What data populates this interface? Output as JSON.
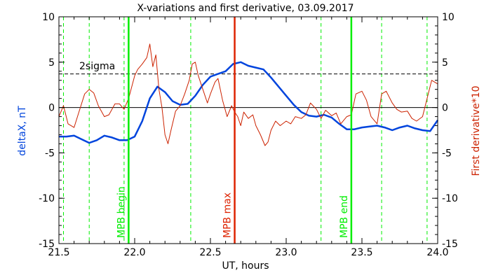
{
  "chart_data": {
    "type": "line",
    "title": "X-variations and first derivative, 03.09.2017",
    "xlabel": "UT, hours",
    "ylabel_left": "deltaX, nT",
    "ylabel_right": "First derivative*10",
    "xlim": [
      21.5,
      24.0
    ],
    "ylim": [
      -15,
      10
    ],
    "x_ticks": [
      "21.5",
      "22.0",
      "22.5",
      "23.0",
      "23.5",
      "24.0"
    ],
    "y_ticks_left": [
      "-15",
      "-10",
      "-5",
      "0",
      "5",
      "10"
    ],
    "y_ticks_right": [
      "-15",
      "-10",
      "-5",
      "0",
      "5",
      "10"
    ],
    "colors": {
      "deltaX": "#0044dd",
      "derivative": "#cc2200",
      "mpb": "#00ee00",
      "mpb_max": "#dd2200",
      "axis": "#000000"
    },
    "sigma_label": "2sigma",
    "sigma_level": 3.7,
    "zero_line": 0,
    "dashed_markers_x": [
      21.53,
      21.7,
      21.93,
      22.37,
      23.23,
      23.63,
      23.93
    ],
    "vertical_lines": [
      {
        "x": 21.96,
        "label": "MPB begin",
        "color": "#00ee00"
      },
      {
        "x": 22.66,
        "label": "MPB max",
        "color": "#dd2200"
      },
      {
        "x": 23.43,
        "label": "MPB end",
        "color": "#00ee00"
      }
    ],
    "series": [
      {
        "key": "deltaX",
        "name": "deltaX, nT",
        "x": [
          21.5,
          21.55,
          21.6,
          21.65,
          21.7,
          21.75,
          21.8,
          21.85,
          21.9,
          21.95,
          22.0,
          22.05,
          22.1,
          22.15,
          22.2,
          22.25,
          22.3,
          22.35,
          22.4,
          22.45,
          22.5,
          22.55,
          22.6,
          22.65,
          22.7,
          22.75,
          22.8,
          22.85,
          22.9,
          22.95,
          23.0,
          23.05,
          23.1,
          23.15,
          23.2,
          23.25,
          23.3,
          23.35,
          23.4,
          23.45,
          23.5,
          23.55,
          23.6,
          23.65,
          23.7,
          23.75,
          23.8,
          23.85,
          23.9,
          23.95,
          24.0
        ],
        "y": [
          -3.2,
          -3.2,
          -3.1,
          -3.5,
          -3.9,
          -3.6,
          -3.1,
          -3.3,
          -3.6,
          -3.6,
          -3.2,
          -1.5,
          1.0,
          2.3,
          1.7,
          0.7,
          0.3,
          0.4,
          1.3,
          2.5,
          3.4,
          3.7,
          4.0,
          4.8,
          5.0,
          4.6,
          4.4,
          4.2,
          3.3,
          2.3,
          1.3,
          0.3,
          -0.5,
          -0.9,
          -1.0,
          -0.8,
          -1.1,
          -1.8,
          -2.4,
          -2.4,
          -2.2,
          -2.1,
          -2.0,
          -2.2,
          -2.5,
          -2.2,
          -2.0,
          -2.3,
          -2.5,
          -2.6,
          -1.4
        ]
      },
      {
        "key": "derivative",
        "name": "First derivative*10",
        "x": [
          21.5,
          21.53,
          21.56,
          21.6,
          21.63,
          21.67,
          21.7,
          21.73,
          21.76,
          21.8,
          21.83,
          21.87,
          21.9,
          21.93,
          21.96,
          22.0,
          22.02,
          22.05,
          22.08,
          22.1,
          22.12,
          22.14,
          22.16,
          22.18,
          22.2,
          22.22,
          22.24,
          22.27,
          22.3,
          22.33,
          22.36,
          22.38,
          22.4,
          22.42,
          22.45,
          22.48,
          22.5,
          22.53,
          22.55,
          22.58,
          22.61,
          22.64,
          22.66,
          22.68,
          22.7,
          22.72,
          22.75,
          22.78,
          22.8,
          22.83,
          22.86,
          22.88,
          22.9,
          22.93,
          22.96,
          23.0,
          23.03,
          23.06,
          23.1,
          23.13,
          23.16,
          23.2,
          23.23,
          23.26,
          23.3,
          23.33,
          23.36,
          23.4,
          23.43,
          23.46,
          23.5,
          23.53,
          23.56,
          23.6,
          23.63,
          23.66,
          23.7,
          23.73,
          23.76,
          23.8,
          23.83,
          23.86,
          23.9,
          23.93,
          23.96,
          24.0
        ],
        "y": [
          -1.0,
          0.2,
          -1.8,
          -2.2,
          -0.6,
          1.5,
          2.0,
          1.6,
          0.2,
          -1.0,
          -0.8,
          0.4,
          0.4,
          -0.2,
          1.0,
          3.5,
          4.2,
          4.8,
          5.5,
          7.0,
          4.5,
          5.8,
          2.0,
          0.0,
          -3.0,
          -4.0,
          -2.5,
          -0.4,
          0.2,
          1.5,
          3.0,
          4.8,
          5.0,
          3.5,
          2.0,
          0.5,
          1.5,
          2.8,
          3.2,
          0.8,
          -1.0,
          0.2,
          -0.5,
          -1.0,
          -2.0,
          -0.5,
          -1.2,
          -0.8,
          -2.0,
          -3.0,
          -4.2,
          -3.8,
          -2.5,
          -1.5,
          -2.0,
          -1.5,
          -1.8,
          -1.0,
          -1.2,
          -0.8,
          0.5,
          -0.2,
          -1.2,
          -0.3,
          -0.9,
          -0.6,
          -1.8,
          -1.0,
          -0.8,
          1.5,
          1.8,
          0.8,
          -1.0,
          -1.8,
          1.5,
          1.8,
          0.5,
          -0.2,
          -0.5,
          -0.4,
          -1.2,
          -1.5,
          -1.0,
          1.0,
          3.0,
          2.6
        ]
      }
    ]
  }
}
